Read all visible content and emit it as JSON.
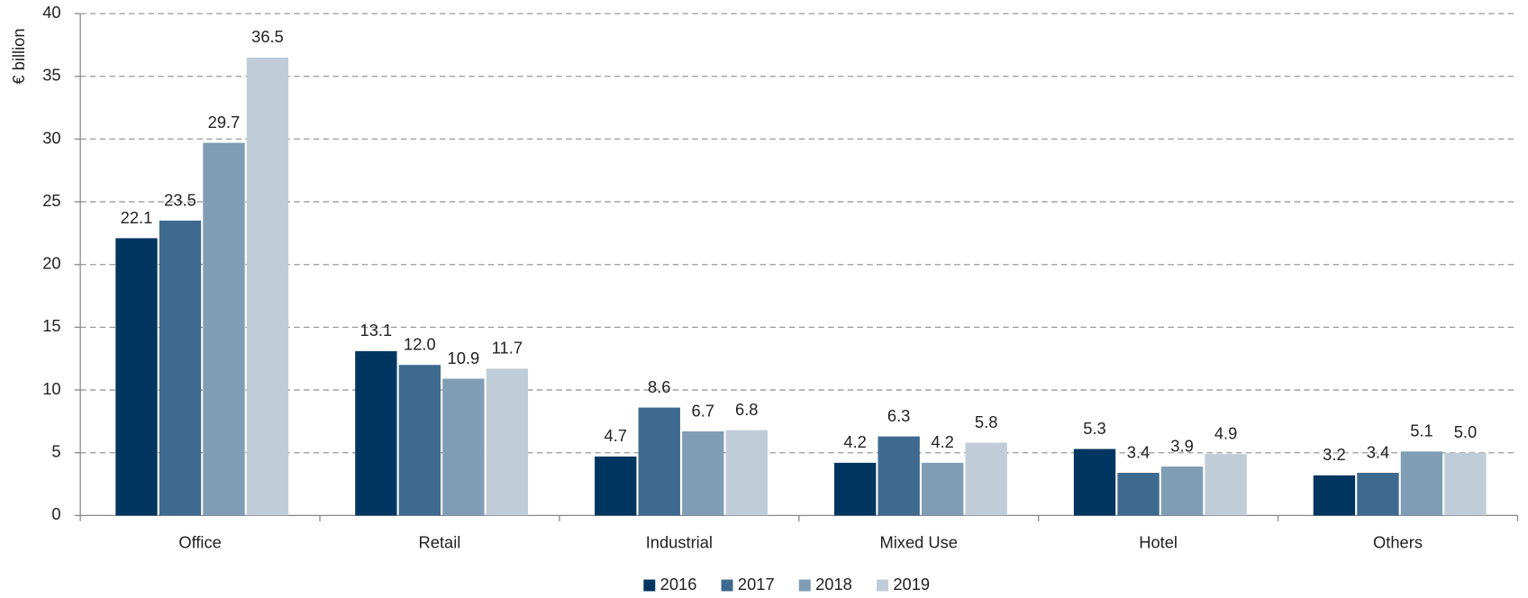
{
  "chart_data": {
    "type": "bar",
    "y_label": "€ billion",
    "categories": [
      "Office",
      "Retail",
      "Industrial",
      "Mixed Use",
      "Hotel",
      "Others"
    ],
    "series": [
      {
        "name": "2016",
        "color": "#003660",
        "values": [
          22.1,
          13.1,
          4.7,
          4.2,
          5.3,
          3.2
        ],
        "value_labels": [
          "22.1",
          "13.1",
          "4.7",
          "4.2",
          "5.3",
          "3.2"
        ]
      },
      {
        "name": "2017",
        "color": "#3f6a8f",
        "values": [
          23.5,
          12.0,
          8.6,
          6.3,
          3.4,
          3.4
        ],
        "value_labels": [
          "23.5",
          "12.0",
          "8.6",
          "6.3",
          "3.4",
          "3.4"
        ]
      },
      {
        "name": "2018",
        "color": "#7f9db5",
        "values": [
          29.7,
          10.9,
          6.7,
          4.2,
          3.9,
          5.1
        ],
        "value_labels": [
          "29.7",
          "10.9",
          "6.7",
          "4.2",
          "3.9",
          "5.1"
        ]
      },
      {
        "name": "2019",
        "color": "#c0cdd9",
        "values": [
          36.5,
          11.7,
          6.8,
          5.8,
          4.9,
          5.0
        ],
        "value_labels": [
          "36.5",
          "11.7",
          "6.8",
          "5.8",
          "4.9",
          "5.0"
        ]
      }
    ],
    "ylim": [
      0,
      40
    ],
    "yticks": [
      0,
      5,
      10,
      15,
      20,
      25,
      30,
      35,
      40
    ],
    "grid": true,
    "legend": "bottom"
  }
}
